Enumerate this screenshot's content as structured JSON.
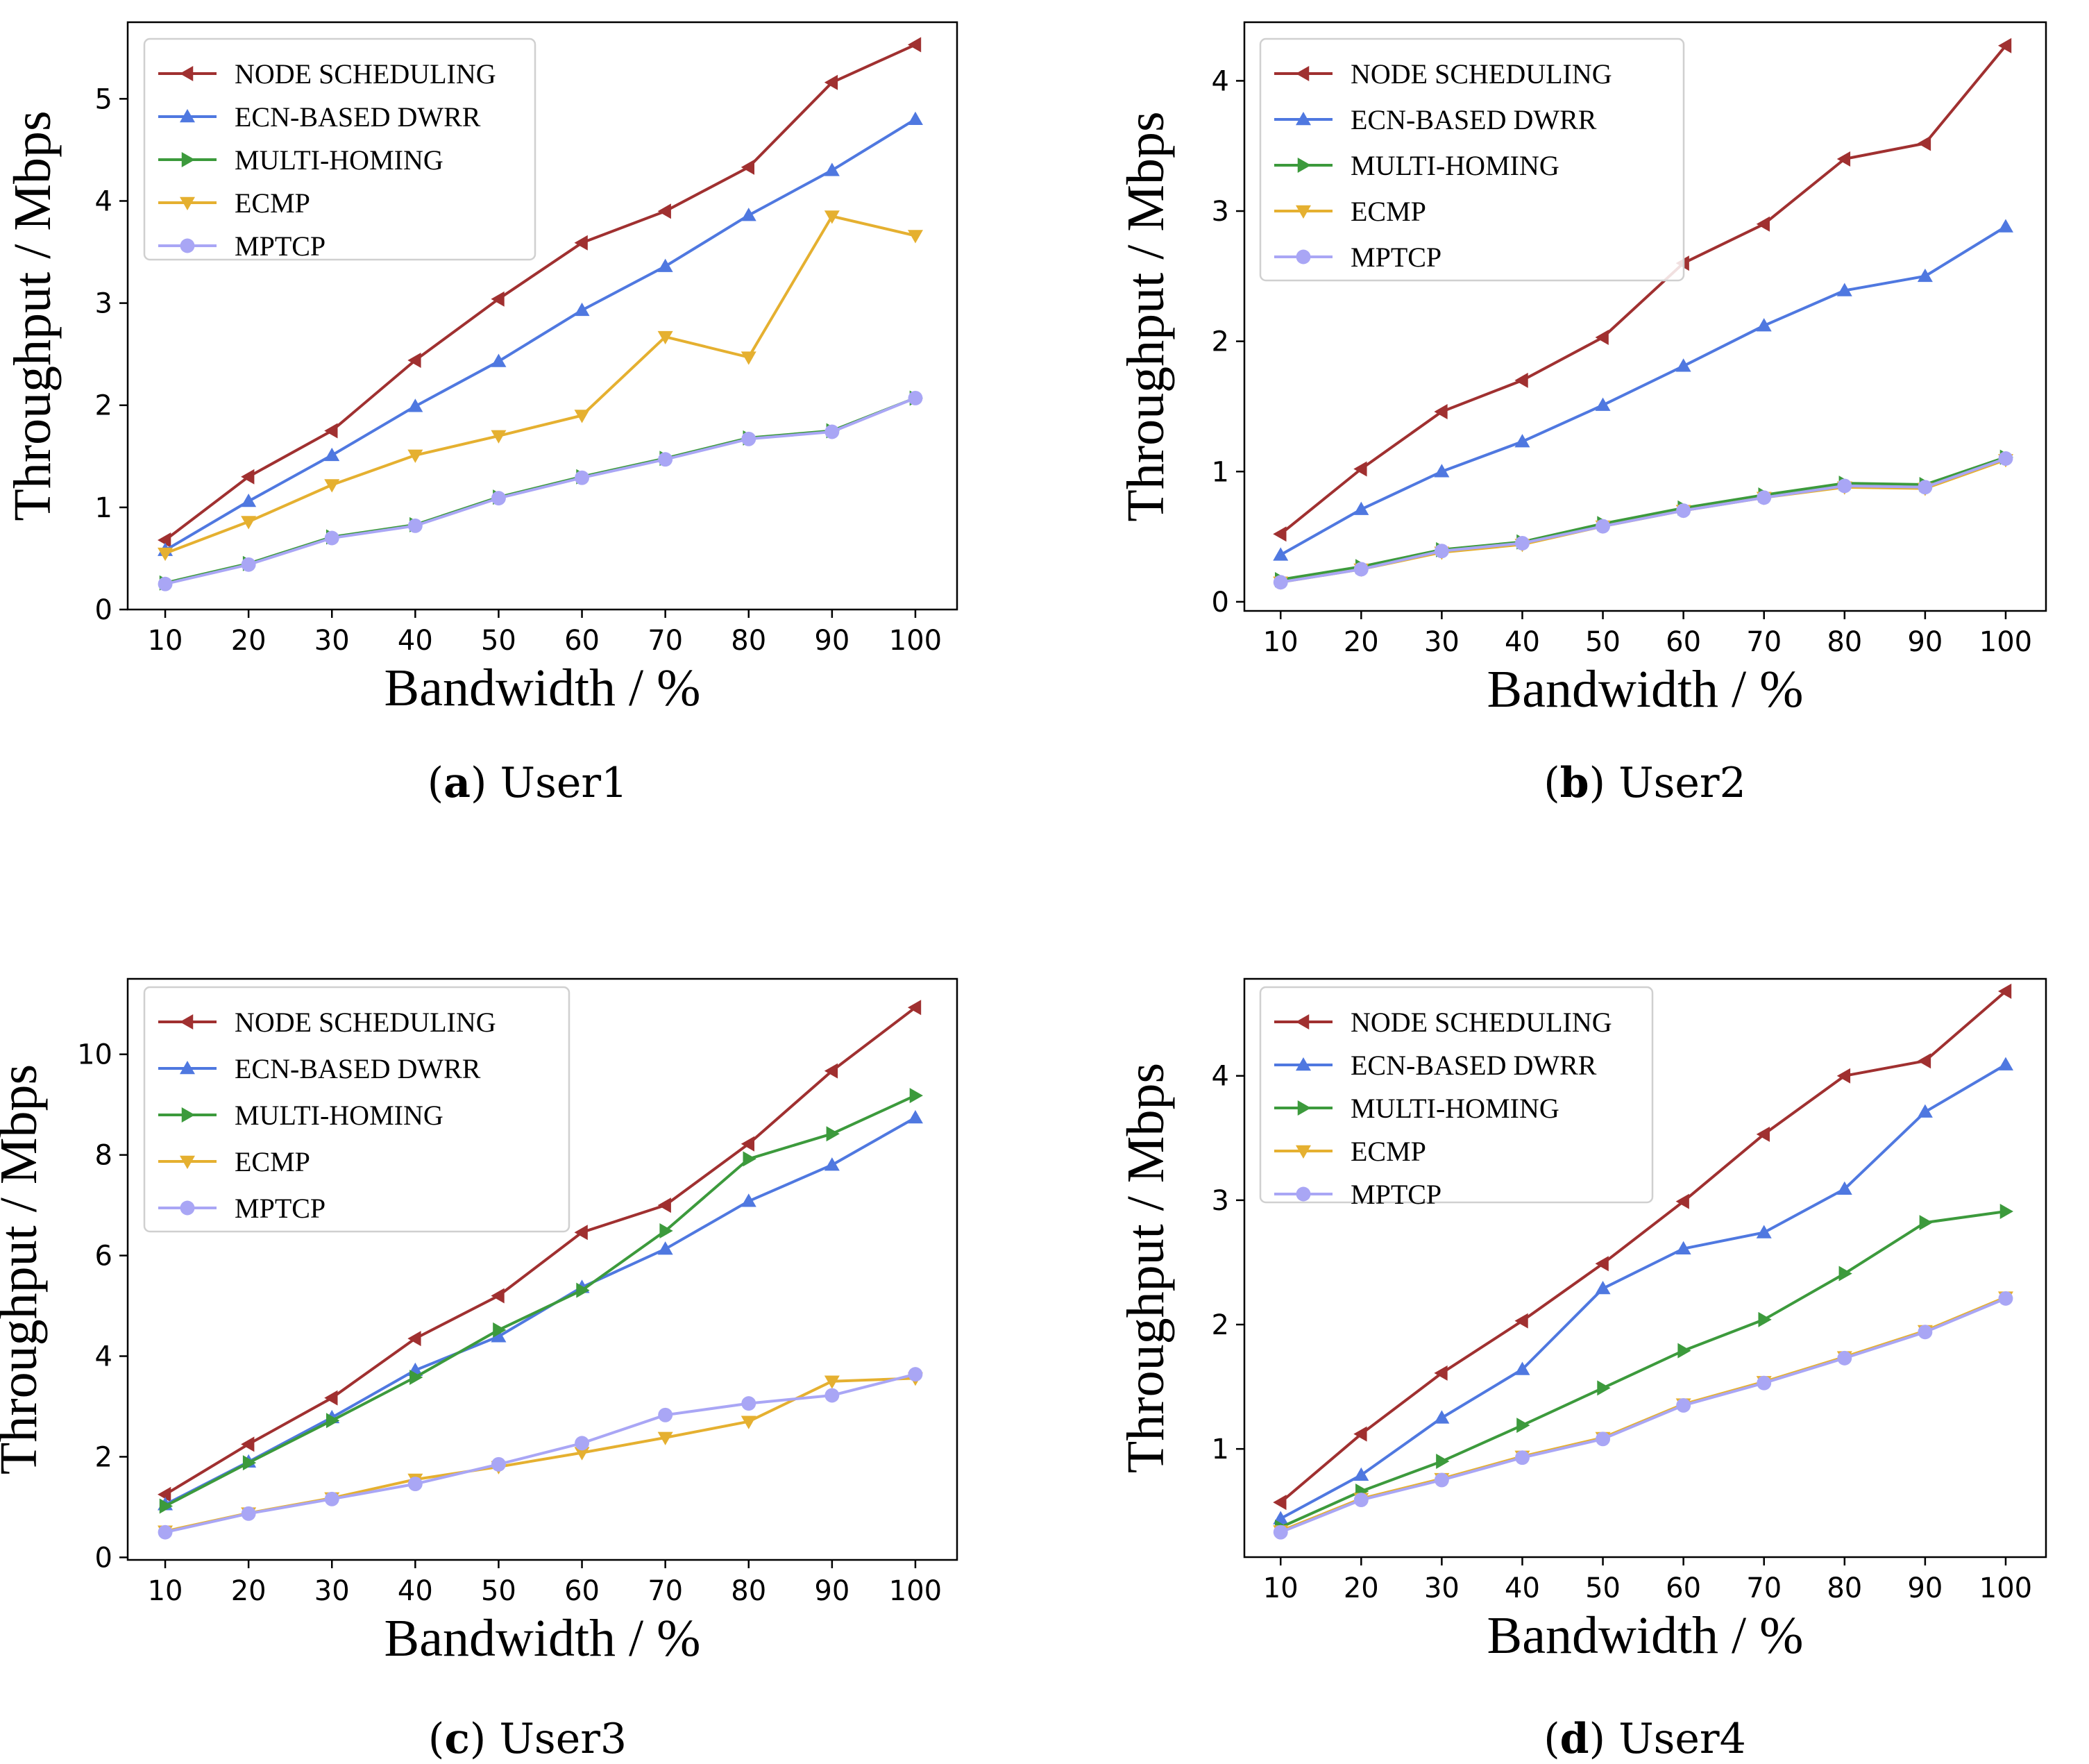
{
  "colors": {
    "node_scheduling": "#a03030",
    "ecn_based_dwrr": "#4f78e0",
    "multi_homing": "#3c9a3c",
    "ecmp": "#e5b030",
    "mptcp": "#a9a6f5"
  },
  "chart_data": [
    {
      "type": "line",
      "caption_letter": "a",
      "caption_text": "User1",
      "xlabel": "Bandwidth / %",
      "ylabel": "Throughput / Mbps",
      "x": [
        10,
        20,
        30,
        40,
        50,
        60,
        70,
        80,
        90,
        100
      ],
      "xlim": [
        5.5,
        105
      ],
      "ylim": [
        0,
        5.75
      ],
      "yticks": [
        0,
        1,
        2,
        3,
        4,
        5
      ],
      "legend_position": "top-left",
      "series": [
        {
          "name": "NODE SCHEDULING",
          "key": "node_scheduling",
          "marker": "triangle-left",
          "values": [
            0.68,
            1.3,
            1.75,
            2.44,
            3.04,
            3.59,
            3.9,
            4.33,
            5.16,
            5.53
          ]
        },
        {
          "name": "ECN-BASED DWRR",
          "key": "ecn_based_dwrr",
          "marker": "triangle-up",
          "values": [
            0.58,
            1.06,
            1.51,
            1.99,
            2.43,
            2.93,
            3.36,
            3.86,
            4.3,
            4.8
          ]
        },
        {
          "name": "MULTI-HOMING",
          "key": "multi_homing",
          "marker": "triangle-right",
          "values": [
            0.26,
            0.45,
            0.71,
            0.83,
            1.1,
            1.3,
            1.48,
            1.68,
            1.75,
            2.07
          ]
        },
        {
          "name": "ECMP",
          "key": "ecmp",
          "marker": "triangle-down",
          "values": [
            0.55,
            0.86,
            1.22,
            1.51,
            1.7,
            1.9,
            2.67,
            2.47,
            3.85,
            3.66
          ]
        },
        {
          "name": "MPTCP",
          "key": "mptcp",
          "marker": "circle",
          "values": [
            0.25,
            0.44,
            0.7,
            0.82,
            1.09,
            1.29,
            1.47,
            1.67,
            1.74,
            2.07
          ]
        }
      ]
    },
    {
      "type": "line",
      "caption_letter": "b",
      "caption_text": "User2",
      "xlabel": "Bandwidth / %",
      "ylabel": "Throughput / Mbps",
      "x": [
        10,
        20,
        30,
        40,
        50,
        60,
        70,
        80,
        90,
        100
      ],
      "xlim": [
        5.5,
        105
      ],
      "ylim": [
        -0.07,
        4.45
      ],
      "yticks": [
        0,
        1,
        2,
        3,
        4
      ],
      "legend_position": "top-left",
      "series": [
        {
          "name": "NODE SCHEDULING",
          "key": "node_scheduling",
          "marker": "triangle-left",
          "values": [
            0.52,
            1.02,
            1.46,
            1.7,
            2.03,
            2.6,
            2.9,
            3.4,
            3.52,
            4.27
          ]
        },
        {
          "name": "ECN-BASED DWRR",
          "key": "ecn_based_dwrr",
          "marker": "triangle-up",
          "values": [
            0.36,
            0.71,
            1.0,
            1.23,
            1.51,
            1.81,
            2.12,
            2.39,
            2.5,
            2.88
          ]
        },
        {
          "name": "MULTI-HOMING",
          "key": "multi_homing",
          "marker": "triangle-right",
          "values": [
            0.17,
            0.27,
            0.4,
            0.46,
            0.6,
            0.72,
            0.82,
            0.91,
            0.9,
            1.11
          ]
        },
        {
          "name": "ECMP",
          "key": "ecmp",
          "marker": "triangle-down",
          "values": [
            0.15,
            0.25,
            0.38,
            0.44,
            0.58,
            0.7,
            0.8,
            0.88,
            0.87,
            1.09
          ]
        },
        {
          "name": "MPTCP",
          "key": "mptcp",
          "marker": "circle",
          "values": [
            0.15,
            0.25,
            0.39,
            0.45,
            0.58,
            0.7,
            0.8,
            0.89,
            0.88,
            1.1
          ]
        }
      ]
    },
    {
      "type": "line",
      "caption_letter": "c",
      "caption_text": "User3",
      "xlabel": "Bandwidth / %",
      "ylabel": "Throughput / Mbps",
      "x": [
        10,
        20,
        30,
        40,
        50,
        60,
        70,
        80,
        90,
        100
      ],
      "xlim": [
        5.5,
        105
      ],
      "ylim": [
        -0.05,
        11.5
      ],
      "yticks": [
        0,
        2,
        4,
        6,
        8,
        10
      ],
      "legend_position": "top-left",
      "series": [
        {
          "name": "NODE SCHEDULING",
          "key": "node_scheduling",
          "marker": "triangle-left",
          "values": [
            1.25,
            2.25,
            3.17,
            4.35,
            5.2,
            6.46,
            7.0,
            8.22,
            9.67,
            10.93
          ]
        },
        {
          "name": "ECN-BASED DWRR",
          "key": "ecn_based_dwrr",
          "marker": "triangle-up",
          "values": [
            1.05,
            1.9,
            2.78,
            3.72,
            4.39,
            5.37,
            6.13,
            7.08,
            7.8,
            8.74
          ]
        },
        {
          "name": "MULTI-HOMING",
          "key": "multi_homing",
          "marker": "triangle-right",
          "values": [
            1.02,
            1.88,
            2.72,
            3.58,
            4.52,
            5.31,
            6.49,
            7.92,
            8.42,
            9.18
          ]
        },
        {
          "name": "ECMP",
          "key": "ecmp",
          "marker": "triangle-down",
          "values": [
            0.52,
            0.88,
            1.18,
            1.55,
            1.8,
            2.08,
            2.38,
            2.7,
            3.5,
            3.56
          ]
        },
        {
          "name": "MPTCP",
          "key": "mptcp",
          "marker": "circle",
          "values": [
            0.5,
            0.87,
            1.16,
            1.46,
            1.85,
            2.27,
            2.83,
            3.06,
            3.22,
            3.64
          ]
        }
      ]
    },
    {
      "type": "line",
      "caption_letter": "d",
      "caption_text": "User4",
      "xlabel": "Bandwidth / %",
      "ylabel": "Throughput / Mbps",
      "x": [
        10,
        20,
        30,
        40,
        50,
        60,
        70,
        80,
        90,
        100
      ],
      "xlim": [
        5.5,
        105
      ],
      "ylim": [
        0.13,
        4.78
      ],
      "yticks": [
        1,
        2,
        3,
        4
      ],
      "legend_position": "top-left",
      "series": [
        {
          "name": "NODE SCHEDULING",
          "key": "node_scheduling",
          "marker": "triangle-left",
          "values": [
            0.57,
            1.12,
            1.61,
            2.03,
            2.49,
            2.99,
            3.53,
            4.0,
            4.12,
            4.68
          ]
        },
        {
          "name": "ECN-BASED DWRR",
          "key": "ecn_based_dwrr",
          "marker": "triangle-up",
          "values": [
            0.44,
            0.79,
            1.25,
            1.64,
            2.29,
            2.61,
            2.74,
            3.09,
            3.71,
            4.09
          ]
        },
        {
          "name": "MULTI-HOMING",
          "key": "multi_homing",
          "marker": "triangle-right",
          "values": [
            0.37,
            0.66,
            0.9,
            1.19,
            1.49,
            1.79,
            2.04,
            2.41,
            2.82,
            2.91
          ]
        },
        {
          "name": "ECMP",
          "key": "ecmp",
          "marker": "triangle-down",
          "values": [
            0.34,
            0.6,
            0.76,
            0.94,
            1.09,
            1.36,
            1.54,
            1.74,
            1.95,
            2.22
          ]
        },
        {
          "name": "MPTCP",
          "key": "mptcp",
          "marker": "circle",
          "values": [
            0.33,
            0.59,
            0.75,
            0.93,
            1.08,
            1.35,
            1.53,
            1.73,
            1.94,
            2.21
          ]
        }
      ]
    }
  ]
}
